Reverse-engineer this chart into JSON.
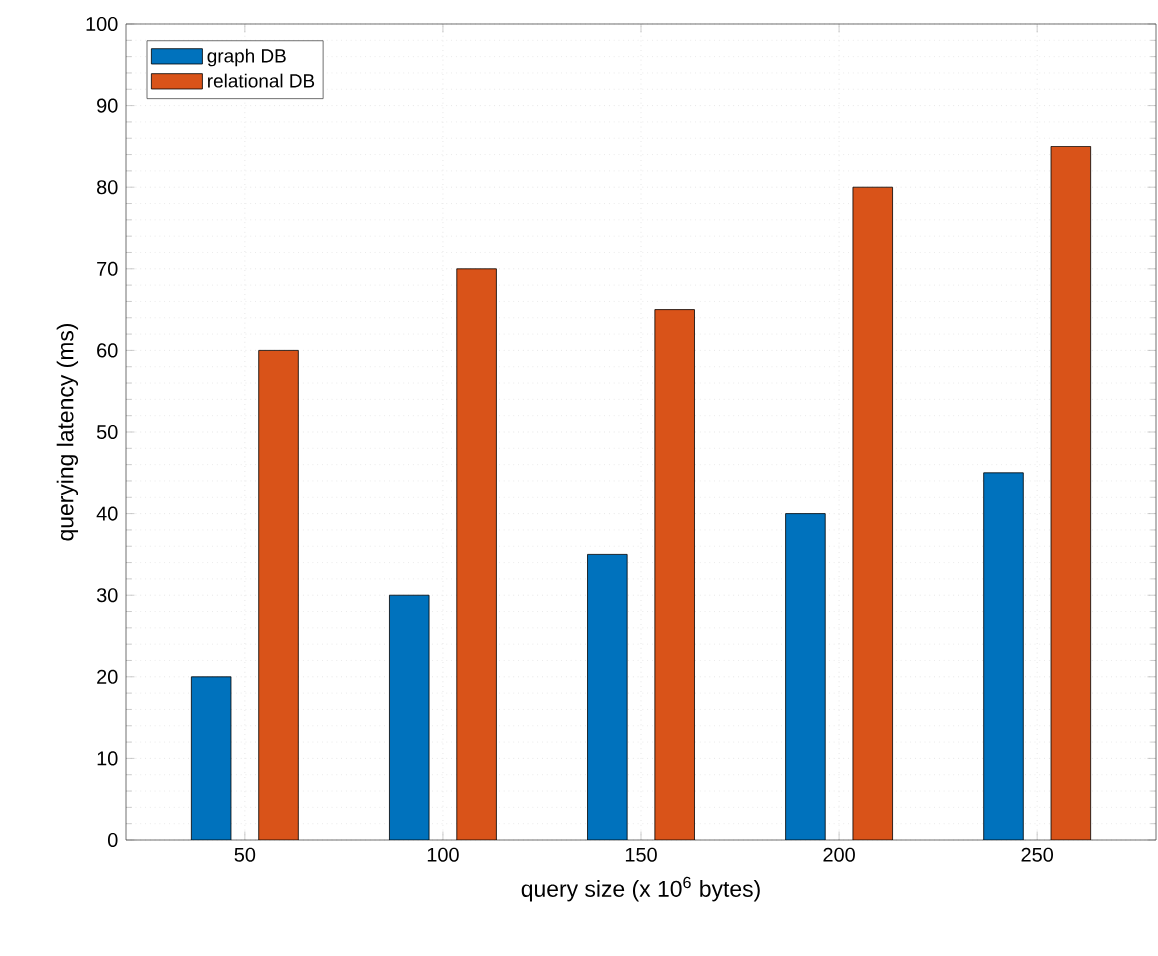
{
  "chart_data": {
    "type": "bar",
    "xlabel": "query size (x 10$^{6}$ bytes)",
    "ylabel": "querying latency (ms)",
    "categories": [
      "50",
      "100",
      "150",
      "200",
      "250"
    ],
    "series": [
      {
        "name": "graph DB",
        "color": "#0072bd",
        "values": [
          20,
          30,
          35,
          40,
          45
        ]
      },
      {
        "name": "relational DB",
        "color": "#d95319",
        "values": [
          60,
          70,
          65,
          80,
          85
        ]
      }
    ],
    "ylim": [
      0,
      100
    ],
    "yticks": [
      0,
      10,
      20,
      30,
      40,
      50,
      60,
      70,
      80,
      90,
      100
    ],
    "grid": true,
    "legend": "top left"
  }
}
